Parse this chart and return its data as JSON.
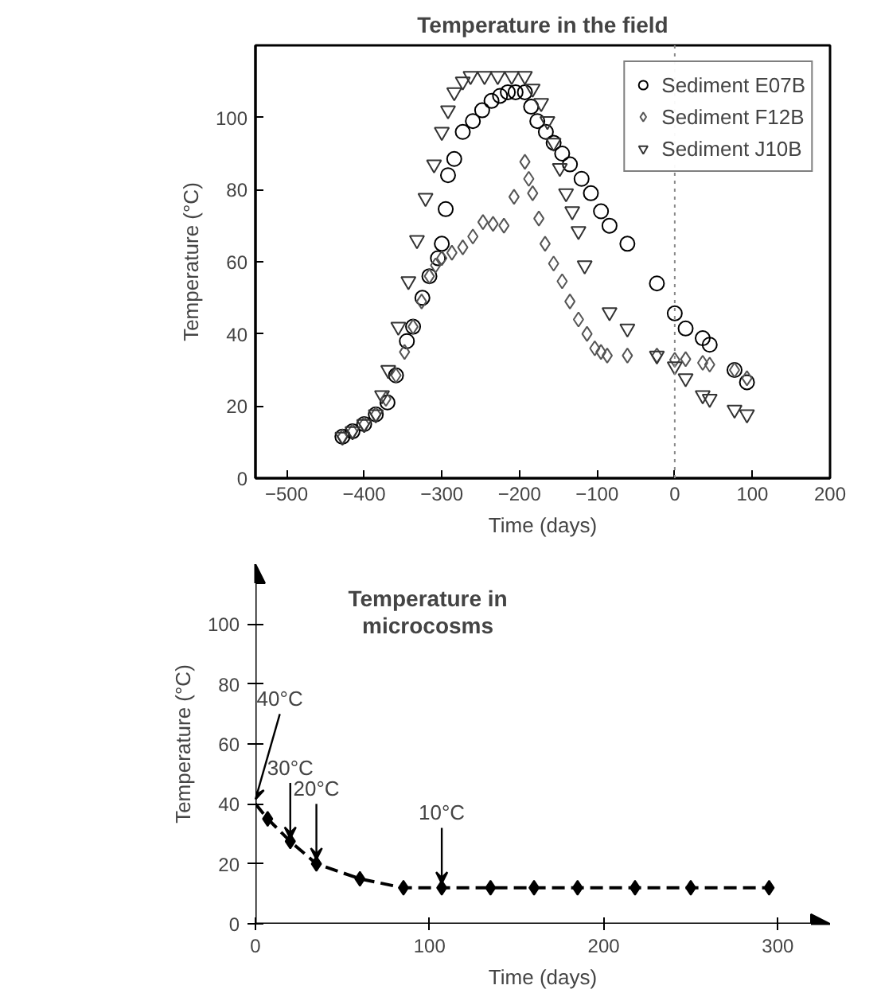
{
  "chart_data": [
    {
      "type": "scatter",
      "title": "Temperature in the field",
      "xlabel": "Time (days)",
      "ylabel": "Temperature (°C)",
      "xlim": [
        -540,
        200
      ],
      "xticks": [
        -500,
        -400,
        -300,
        -200,
        -100,
        0,
        100,
        200
      ],
      "ylim": [
        0,
        120
      ],
      "yticks": [
        0,
        20,
        40,
        60,
        80,
        100
      ],
      "legend": "top right",
      "grid": false,
      "ref_lines": [
        {
          "axis": "x",
          "value": 0,
          "color": "#888888",
          "line_style": "dotted"
        }
      ],
      "series": [
        {
          "name": "Sediment E07B",
          "color": "#000000",
          "marker": "circle",
          "x": [
            -428,
            -415,
            -400,
            -385,
            -370,
            -359,
            -345,
            -337,
            -325,
            -316,
            -305,
            -300,
            -295,
            -292,
            -284,
            -273,
            -260,
            -248,
            -236,
            -225,
            -215,
            -205,
            -193,
            -185,
            -177,
            -166,
            -156,
            -145,
            -135,
            -120,
            -108,
            -95,
            -84,
            -61,
            -23,
            0,
            14,
            36,
            45,
            77,
            93
          ],
          "values": [
            11.5,
            13,
            15,
            17.7,
            21,
            28.5,
            38,
            42,
            50,
            56,
            61,
            65,
            74.6,
            84,
            88.5,
            96,
            99,
            102,
            104.6,
            106,
            107,
            107,
            107,
            103,
            99,
            96,
            93,
            90,
            87,
            83,
            79,
            74,
            70,
            65,
            54,
            45.7,
            41.5,
            38.8,
            37,
            30,
            26.6
          ]
        },
        {
          "name": "Sediment F12B",
          "color": "#555555",
          "marker": "diamond",
          "x": [
            -428,
            -415,
            -400,
            -385,
            -372,
            -359,
            -348,
            -337,
            -326,
            -316,
            -308,
            -300,
            -287,
            -273,
            -260,
            -247,
            -234,
            -220,
            -207,
            -193,
            -188,
            -183,
            -175,
            -167,
            -156,
            -145,
            -135,
            -124,
            -113,
            -103,
            -95,
            -87,
            -61,
            -23,
            0,
            14,
            36,
            45,
            77,
            93
          ],
          "values": [
            11.5,
            13,
            15,
            17.7,
            22,
            28.5,
            35,
            42,
            49,
            56,
            59,
            61,
            62.5,
            64,
            67,
            71,
            70.5,
            70,
            78,
            87.7,
            83,
            79,
            72,
            65,
            59.5,
            54.6,
            49,
            44,
            40,
            36,
            35,
            34,
            34,
            34,
            32.8,
            33,
            32,
            31.5,
            30,
            27.7
          ]
        },
        {
          "name": "Sediment J10B",
          "color": "#333333",
          "marker": "triangle",
          "x": [
            -428,
            -415,
            -400,
            -385,
            -377,
            -369,
            -356,
            -343,
            -332,
            -321,
            -310,
            -300,
            -292,
            -284,
            -273,
            -263,
            -245,
            -228,
            -210,
            -193,
            -183,
            -172,
            -164,
            -156,
            -148,
            -140,
            -132,
            -124,
            -116,
            -84,
            -61,
            -23,
            0,
            14,
            36,
            45,
            77,
            93
          ],
          "values": [
            11.5,
            13,
            15,
            17.7,
            23,
            30,
            42,
            54.6,
            66,
            77.7,
            87,
            96,
            102,
            107,
            110,
            111.5,
            111.5,
            111.5,
            111.5,
            111.5,
            108,
            104,
            99,
            93,
            86,
            79,
            74,
            68.5,
            59,
            46,
            41.5,
            34,
            31,
            27.7,
            23,
            22,
            19,
            17.7
          ]
        }
      ]
    },
    {
      "type": "line",
      "title": "Temperature in microcosms",
      "xlabel": "Time (days)",
      "ylabel": "Temperature (°C)",
      "xlim": [
        0,
        330
      ],
      "xticks": [
        0,
        100,
        200,
        300
      ],
      "ylim": [
        0,
        120
      ],
      "yticks": [
        0,
        20,
        40,
        60,
        80,
        100
      ],
      "grid": false,
      "legend": false,
      "annotations": [
        {
          "text": "40°C",
          "x": 0,
          "y": 40
        },
        {
          "text": "30°C",
          "x": 20,
          "y": 27
        },
        {
          "text": "20°C",
          "x": 35,
          "y": 20
        },
        {
          "text": "10°C",
          "x": 107,
          "y": 12
        }
      ],
      "series": [
        {
          "color": "#000000",
          "marker": "none",
          "line_style": "dashed",
          "x": [
            0,
            7,
            20,
            35,
            60,
            85,
            107,
            135,
            160,
            185,
            218,
            250,
            295
          ],
          "values": [
            40,
            35,
            27.5,
            20,
            15,
            12,
            12,
            12,
            12,
            12,
            12,
            12,
            12
          ]
        },
        {
          "type": "scatter",
          "color": "#000000",
          "marker": "diamond",
          "x": [
            7,
            20,
            35,
            60,
            85,
            107,
            135,
            160,
            185,
            218,
            250,
            295
          ],
          "values": [
            35,
            27.5,
            20,
            15,
            12,
            12,
            12,
            12,
            12,
            12,
            12,
            12
          ]
        }
      ]
    }
  ]
}
